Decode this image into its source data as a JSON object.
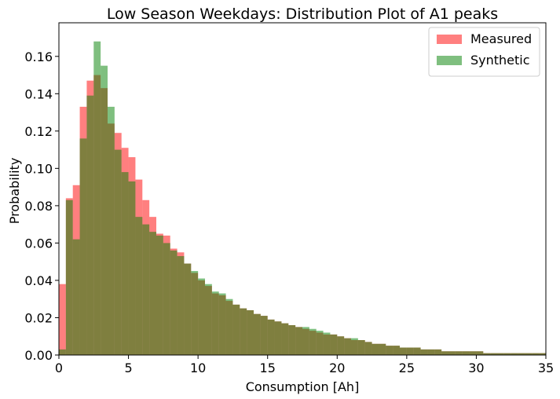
{
  "chart_data": {
    "type": "bar",
    "title": "Low Season Weekdays: Distribution Plot of A1 peaks",
    "xlabel": "Consumption [Ah]",
    "ylabel": "Probability",
    "xlim": [
      0,
      35
    ],
    "ylim": [
      0,
      0.178
    ],
    "xticks": [
      "0",
      "5",
      "10",
      "15",
      "20",
      "25",
      "30",
      "35"
    ],
    "yticks": [
      "0.00",
      "0.02",
      "0.04",
      "0.06",
      "0.08",
      "0.10",
      "0.12",
      "0.14",
      "0.16"
    ],
    "bin_width": 0.5,
    "grid": false,
    "legend": "top-right",
    "series": [
      {
        "name": "Measured",
        "color": "#ff0000",
        "opacity": 0.5,
        "values": [
          0.038,
          0.084,
          0.091,
          0.133,
          0.147,
          0.15,
          0.143,
          0.124,
          0.119,
          0.111,
          0.106,
          0.094,
          0.083,
          0.074,
          0.065,
          0.064,
          0.057,
          0.055,
          0.049,
          0.044,
          0.04,
          0.037,
          0.033,
          0.032,
          0.029,
          0.027,
          0.025,
          0.024,
          0.022,
          0.021,
          0.019,
          0.018,
          0.017,
          0.016,
          0.015,
          0.014,
          0.013,
          0.012,
          0.011,
          0.011,
          0.01,
          0.009,
          0.008,
          0.008,
          0.007,
          0.006,
          0.006,
          0.005,
          0.005,
          0.004,
          0.004,
          0.004,
          0.003,
          0.003,
          0.003,
          0.002,
          0.002,
          0.002,
          0.002,
          0.002,
          0.002,
          0.001,
          0.001,
          0.001,
          0.001,
          0.001,
          0.001,
          0.001,
          0.001,
          0.001
        ]
      },
      {
        "name": "Synthetic",
        "color": "#008000",
        "opacity": 0.5,
        "values": [
          0.003,
          0.083,
          0.062,
          0.116,
          0.139,
          0.168,
          0.155,
          0.133,
          0.11,
          0.098,
          0.093,
          0.074,
          0.07,
          0.066,
          0.064,
          0.06,
          0.056,
          0.053,
          0.049,
          0.045,
          0.041,
          0.038,
          0.034,
          0.033,
          0.03,
          0.027,
          0.025,
          0.024,
          0.022,
          0.021,
          0.019,
          0.018,
          0.017,
          0.016,
          0.015,
          0.015,
          0.014,
          0.013,
          0.012,
          0.011,
          0.01,
          0.009,
          0.009,
          0.008,
          0.007,
          0.006,
          0.006,
          0.005,
          0.005,
          0.004,
          0.004,
          0.004,
          0.003,
          0.003,
          0.003,
          0.002,
          0.002,
          0.002,
          0.002,
          0.002,
          0.002,
          0.001,
          0.001,
          0.001,
          0.001,
          0.001,
          0.001,
          0.001,
          0.001,
          0.001
        ]
      }
    ]
  }
}
